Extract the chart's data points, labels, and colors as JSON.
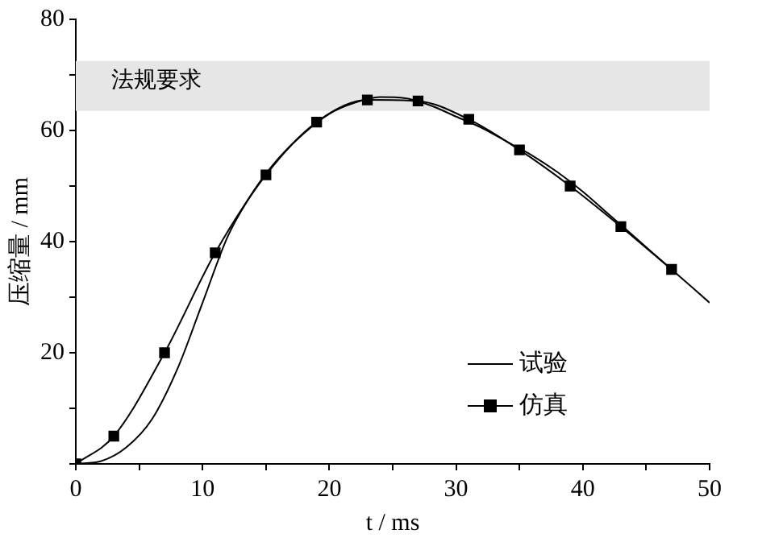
{
  "chart_data": {
    "type": "line",
    "xlabel": "t / ms",
    "ylabel": "压缩量 / mm",
    "xlim": [
      0,
      50
    ],
    "xticks": [
      0,
      {
        "value": 5,
        "label": null
      },
      10,
      {
        "value": 15,
        "label": null
      },
      20,
      {
        "value": 25,
        "label": null
      },
      30,
      {
        "value": 35,
        "label": null
      },
      40,
      {
        "value": 45,
        "label": null
      },
      50
    ],
    "ylim": [
      0,
      80
    ],
    "yticks": [
      {
        "value": 0,
        "label": null
      },
      {
        "value": 10,
        "label": null
      },
      20,
      {
        "value": 30,
        "label": null
      },
      40,
      {
        "value": 50,
        "label": null
      },
      60,
      {
        "value": 70,
        "label": null
      },
      80
    ],
    "series": [
      {
        "name": "试验",
        "color": "#000000",
        "marker": "none",
        "x": [
          0,
          2,
          4,
          6,
          8,
          10,
          12,
          14,
          16,
          18,
          20,
          22,
          24,
          26,
          28,
          30,
          32,
          34,
          36,
          38,
          40,
          42,
          44,
          46,
          48,
          50
        ],
        "values": [
          0,
          0.5,
          3,
          8,
          17,
          29,
          41,
          49,
          55,
          59.5,
          63,
          65,
          66,
          65.8,
          64.5,
          62.5,
          60.5,
          58,
          55.5,
          52.5,
          49,
          45,
          41,
          37,
          33,
          29
        ]
      },
      {
        "name": "仿真",
        "color": "#000000",
        "marker": "square",
        "x": [
          0,
          3,
          7,
          11,
          15,
          19,
          23,
          27,
          31,
          35,
          39,
          43,
          47
        ],
        "values": [
          0,
          5,
          20,
          38,
          52,
          61.5,
          65.5,
          65.3,
          62,
          56.5,
          50,
          42.7,
          35
        ]
      }
    ],
    "bands": [
      {
        "axis": "y",
        "from": 63.5,
        "to": 72.5,
        "label": "法规要求",
        "color": "#e6e6e6"
      }
    ],
    "legend": "bottom right",
    "grid": false
  }
}
